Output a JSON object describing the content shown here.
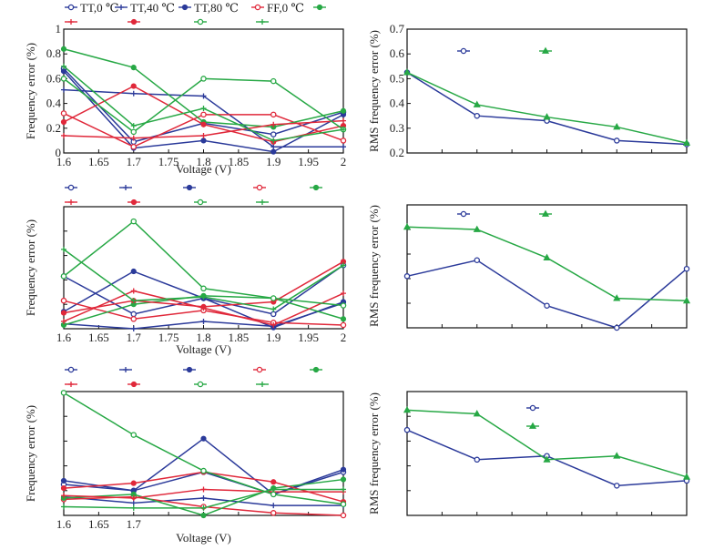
{
  "legend": {
    "row1": [
      {
        "label": "TT,0 ℃",
        "color": "#2b3a9a",
        "marker": "open-circle"
      },
      {
        "label": "TT,40 ℃",
        "color": "#2b3a9a",
        "marker": "plus"
      },
      {
        "label": "TT,80 ℃",
        "color": "#2b3a9a",
        "marker": "filled-circle"
      },
      {
        "label": "FF,0 ℃",
        "color": "#e0283a",
        "marker": "open-circle"
      },
      {
        "label": "",
        "color": "#27a845",
        "marker": "filled-circle"
      }
    ],
    "row2": [
      {
        "label": "",
        "color": "#e0283a",
        "marker": "plus"
      },
      {
        "label": "",
        "color": "#e0283a",
        "marker": "filled-circle"
      },
      {
        "label": "",
        "color": "#27a845",
        "marker": "open-circle"
      },
      {
        "label": "",
        "color": "#27a845",
        "marker": "plus"
      }
    ]
  },
  "rms_legend": [
    {
      "label": "",
      "color": "#2b3a9a",
      "marker": "open-circle"
    },
    {
      "label": "",
      "color": "#27a845",
      "marker": "triangle"
    }
  ],
  "chart_data": [
    {
      "id": "top-left",
      "type": "line",
      "xlabel": "Voltage (V)",
      "ylabel": "Frequency error (%)",
      "xlim": [
        1.6,
        2.0
      ],
      "ylim": [
        0,
        1
      ],
      "xticks": [
        1.6,
        1.65,
        1.7,
        1.75,
        1.8,
        1.85,
        1.9,
        1.95,
        2.0
      ],
      "xtick_labels": [
        "1.6",
        "1.65",
        "1.7",
        "1.75",
        "1.8",
        "1.85",
        "1.9",
        "1.95",
        "2"
      ],
      "yticks": [
        0,
        0.2,
        0.4,
        0.6,
        0.8,
        1.0
      ],
      "ytick_labels": [
        "0",
        "0.2",
        "0.4",
        "0.6",
        "0.8",
        "1"
      ],
      "x": [
        1.6,
        1.7,
        1.8,
        1.9,
        2.0
      ],
      "series": [
        {
          "name": "TT,0 ℃",
          "color": "#2b3a9a",
          "marker": "open-circle",
          "values": [
            0.68,
            0.09,
            0.24,
            0.15,
            0.33
          ]
        },
        {
          "name": "TT,40 ℃",
          "color": "#2b3a9a",
          "marker": "plus",
          "values": [
            0.51,
            0.48,
            0.46,
            0.05,
            0.05
          ]
        },
        {
          "name": "TT,80 ℃",
          "color": "#2b3a9a",
          "marker": "filled-circle",
          "values": [
            0.66,
            0.04,
            0.1,
            0.01,
            0.31
          ]
        },
        {
          "name": "FF,0 ℃",
          "color": "#e0283a",
          "marker": "open-circle",
          "values": [
            0.32,
            0.05,
            0.31,
            0.31,
            0.1
          ]
        },
        {
          "name": "",
          "color": "#27a845",
          "marker": "filled-circle",
          "values": [
            0.84,
            0.69,
            0.25,
            0.21,
            0.34
          ]
        },
        {
          "name": "",
          "color": "#e0283a",
          "marker": "plus",
          "values": [
            0.14,
            0.12,
            0.14,
            0.23,
            0.26
          ]
        },
        {
          "name": "",
          "color": "#e0283a",
          "marker": "filled-circle",
          "values": [
            0.25,
            0.54,
            0.23,
            0.09,
            0.22
          ]
        },
        {
          "name": "",
          "color": "#27a845",
          "marker": "open-circle",
          "values": [
            0.6,
            0.17,
            0.6,
            0.58,
            0.19
          ]
        },
        {
          "name": "",
          "color": "#27a845",
          "marker": "plus",
          "values": [
            0.7,
            0.22,
            0.36,
            0.1,
            0.19
          ]
        }
      ]
    },
    {
      "id": "top-right",
      "type": "line",
      "xlabel": "",
      "ylabel": "RMS frequency error (%)",
      "ylim": [
        0.2,
        0.7
      ],
      "yticks": [
        0.2,
        0.3,
        0.4,
        0.5,
        0.6,
        0.7
      ],
      "ytick_labels": [
        "0.2",
        "0.3",
        "0.4",
        "0.5",
        "0.6",
        "0.7"
      ],
      "x": [
        1,
        2,
        3,
        4,
        5
      ],
      "series": [
        {
          "name": "",
          "color": "#2b3a9a",
          "marker": "open-circle",
          "values": [
            0.525,
            0.35,
            0.33,
            0.25,
            0.235
          ]
        },
        {
          "name": "",
          "color": "#27a845",
          "marker": "triangle",
          "values": [
            0.525,
            0.395,
            0.345,
            0.305,
            0.24
          ]
        }
      ]
    },
    {
      "id": "middle-left",
      "type": "line",
      "xlabel": "Voltage (V)",
      "ylabel": "Frequency error (%)",
      "xlim": [
        1.6,
        2.0
      ],
      "ylim": [
        0,
        1
      ],
      "xticks": [
        1.6,
        1.65,
        1.7,
        1.75,
        1.8,
        1.85,
        1.9,
        1.95,
        2.0
      ],
      "xtick_labels": [
        "1.6",
        "1.65",
        "1.7",
        "1.75",
        "1.8",
        "1.85",
        "1.9",
        "1.95",
        "2"
      ],
      "yticks": [
        0.2,
        0.4,
        0.6,
        0.8
      ],
      "ytick_labels": [],
      "x": [
        1.6,
        1.7,
        1.8,
        1.9,
        2.0
      ],
      "series": [
        {
          "name": "TT,0 ℃",
          "color": "#2b3a9a",
          "marker": "open-circle",
          "values": [
            0.43,
            0.12,
            0.25,
            0.12,
            0.52
          ]
        },
        {
          "name": "TT,40 ℃",
          "color": "#2b3a9a",
          "marker": "plus",
          "values": [
            0.04,
            0.0,
            0.06,
            0.02,
            0.21
          ]
        },
        {
          "name": "TT,80 ℃",
          "color": "#2b3a9a",
          "marker": "filled-circle",
          "values": [
            0.14,
            0.47,
            0.25,
            0.01,
            0.22
          ]
        },
        {
          "name": "FF,0 ℃",
          "color": "#e0283a",
          "marker": "open-circle",
          "values": [
            0.23,
            0.08,
            0.15,
            0.05,
            0.03
          ]
        },
        {
          "name": "",
          "color": "#27a845",
          "marker": "filled-circle",
          "values": [
            0.03,
            0.2,
            0.27,
            0.25,
            0.08
          ]
        },
        {
          "name": "",
          "color": "#e0283a",
          "marker": "plus",
          "values": [
            0.06,
            0.31,
            0.17,
            0.03,
            0.29
          ]
        },
        {
          "name": "",
          "color": "#e0283a",
          "marker": "filled-circle",
          "values": [
            0.13,
            0.23,
            0.18,
            0.22,
            0.55
          ]
        },
        {
          "name": "",
          "color": "#27a845",
          "marker": "open-circle",
          "values": [
            0.43,
            0.88,
            0.33,
            0.25,
            0.19
          ]
        },
        {
          "name": "",
          "color": "#27a845",
          "marker": "plus",
          "values": [
            0.65,
            0.23,
            0.26,
            0.16,
            0.52
          ]
        }
      ]
    },
    {
      "id": "middle-right",
      "type": "line",
      "xlabel": "",
      "ylabel": "RMS frequency error (%)",
      "ylim": [
        0,
        1
      ],
      "yticks": [
        0.2,
        0.4,
        0.6,
        0.8
      ],
      "ytick_labels": [],
      "x": [
        1,
        2,
        3,
        4,
        5
      ],
      "series": [
        {
          "name": "",
          "color": "#2b3a9a",
          "marker": "open-circle",
          "values": [
            0.42,
            0.55,
            0.18,
            0.0,
            0.48
          ]
        },
        {
          "name": "",
          "color": "#27a845",
          "marker": "triangle",
          "values": [
            0.82,
            0.8,
            0.57,
            0.24,
            0.22
          ]
        }
      ]
    },
    {
      "id": "bottom-left",
      "type": "line",
      "xlabel": "Voltage (V)",
      "ylabel": "Frequency error (%)",
      "xlim": [
        1.6,
        2.0
      ],
      "ylim": [
        0,
        1
      ],
      "xticks": [
        1.6,
        1.65,
        1.7,
        1.75,
        1.8,
        1.85,
        1.9,
        1.95,
        2.0
      ],
      "xtick_labels": [
        "1.6",
        "1.65",
        "1.7",
        "",
        "",
        "",
        "",
        "",
        ""
      ],
      "yticks": [
        0.2,
        0.4,
        0.6,
        0.8
      ],
      "ytick_labels": [],
      "x": [
        1.6,
        1.7,
        1.8,
        1.9,
        2.0
      ],
      "series": [
        {
          "name": "TT,0 ℃",
          "color": "#2b3a9a",
          "marker": "open-circle",
          "values": [
            0.25,
            0.2,
            0.35,
            0.17,
            0.35
          ]
        },
        {
          "name": "TT,40 ℃",
          "color": "#2b3a9a",
          "marker": "plus",
          "values": [
            0.15,
            0.1,
            0.14,
            0.08,
            0.08
          ]
        },
        {
          "name": "TT,80 ℃",
          "color": "#2b3a9a",
          "marker": "filled-circle",
          "values": [
            0.28,
            0.2,
            0.62,
            0.17,
            0.37
          ]
        },
        {
          "name": "FF,0 ℃",
          "color": "#e0283a",
          "marker": "open-circle",
          "values": [
            0.13,
            0.15,
            0.07,
            0.02,
            0.0
          ]
        },
        {
          "name": "",
          "color": "#27a845",
          "marker": "filled-circle",
          "values": [
            0.14,
            0.17,
            0.0,
            0.22,
            0.29
          ]
        },
        {
          "name": "",
          "color": "#e0283a",
          "marker": "plus",
          "values": [
            0.16,
            0.14,
            0.21,
            0.19,
            0.19
          ]
        },
        {
          "name": "",
          "color": "#e0283a",
          "marker": "filled-circle",
          "values": [
            0.22,
            0.26,
            0.35,
            0.27,
            0.11
          ]
        },
        {
          "name": "",
          "color": "#27a845",
          "marker": "open-circle",
          "values": [
            0.99,
            0.65,
            0.36,
            0.17,
            0.09
          ]
        },
        {
          "name": "",
          "color": "#27a845",
          "marker": "plus",
          "values": [
            0.07,
            0.06,
            0.06,
            0.21,
            0.21
          ]
        }
      ]
    },
    {
      "id": "bottom-right",
      "type": "line",
      "xlabel": "",
      "ylabel": "RMS frequency error (%)",
      "ylim": [
        0,
        1
      ],
      "yticks": [
        0.2,
        0.4,
        0.6,
        0.8
      ],
      "ytick_labels": [],
      "x": [
        1,
        2,
        3,
        4,
        5
      ],
      "series": [
        {
          "name": "",
          "color": "#2b3a9a",
          "marker": "open-circle",
          "values": [
            0.69,
            0.45,
            0.48,
            0.24,
            0.28
          ]
        },
        {
          "name": "",
          "color": "#27a845",
          "marker": "triangle",
          "values": [
            0.85,
            0.82,
            0.45,
            0.48,
            0.31
          ]
        }
      ]
    }
  ]
}
